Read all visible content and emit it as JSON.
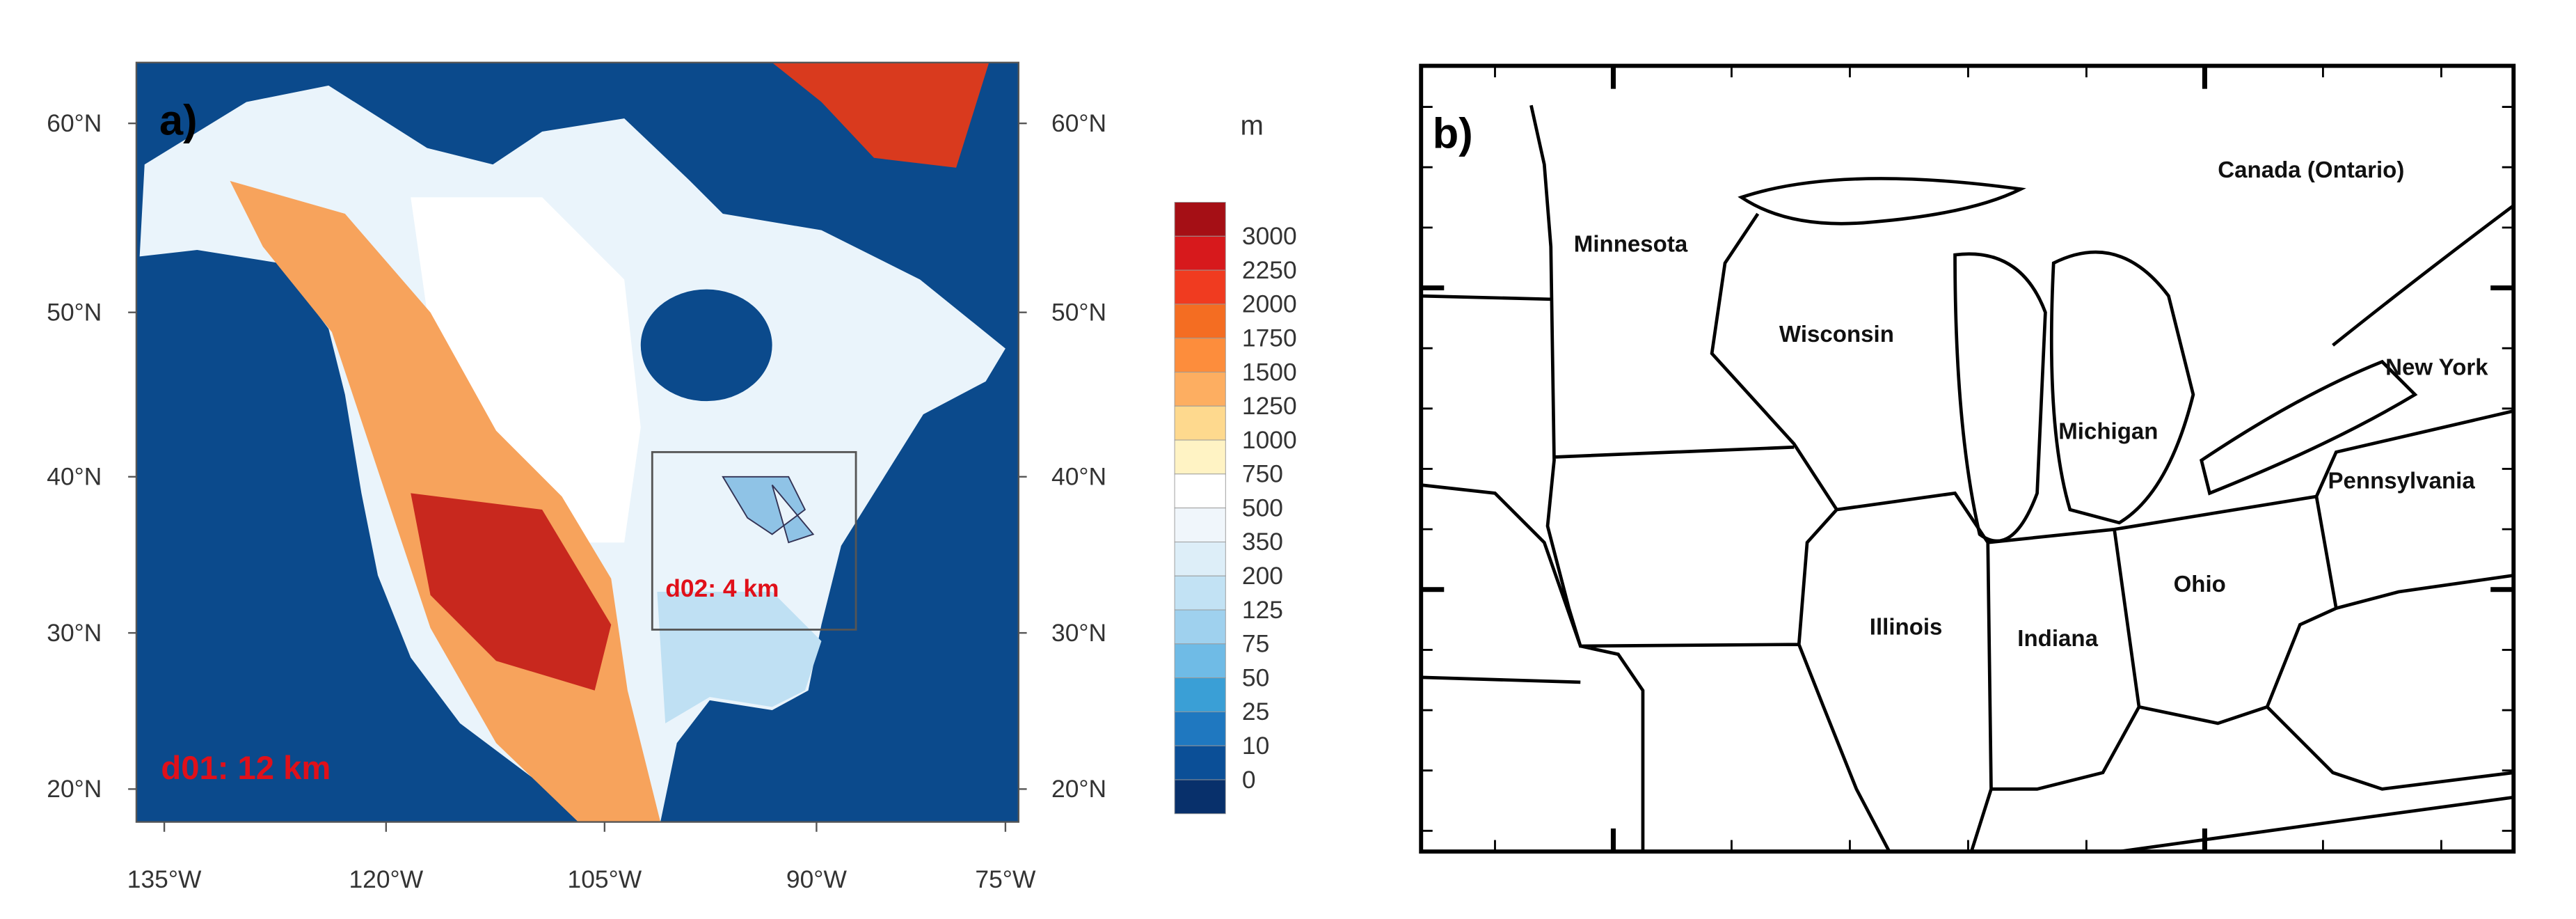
{
  "panel_a": {
    "label": "a)",
    "lat_labels_left": [
      "60°N",
      "50°N",
      "40°N",
      "30°N",
      "20°N"
    ],
    "lat_labels_right": [
      "60°N",
      "50°N",
      "40°N",
      "30°N",
      "20°N"
    ],
    "lon_labels": [
      "135°W",
      "120°W",
      "105°W",
      "90°W",
      "75°W"
    ],
    "inner_domain": "d02: 4 km",
    "outer_domain": "d01: 12 km",
    "colorbar": {
      "unit": "m",
      "levels": [
        3000,
        2250,
        2000,
        1750,
        1500,
        1250,
        1000,
        750,
        500,
        350,
        200,
        125,
        75,
        50,
        25,
        10,
        0
      ],
      "colors": [
        "#a50f15",
        "#d7191c",
        "#f03b20",
        "#f46d22",
        "#fd8d3c",
        "#fdae61",
        "#fed98e",
        "#fff3c4",
        "#ffffff",
        "#f0f6fb",
        "#ddeef8",
        "#c2e2f4",
        "#9fd1ee",
        "#6fbbe6",
        "#3a9fd6",
        "#1f78c0",
        "#0b4f97",
        "#08306b"
      ]
    }
  },
  "panel_b": {
    "label": "b)",
    "states": [
      "Minnesota",
      "Wisconsin",
      "Michigan",
      "Canada (Ontario)",
      "New York",
      "Pennsylvania",
      "Ohio",
      "Indiana",
      "Illinois"
    ]
  }
}
